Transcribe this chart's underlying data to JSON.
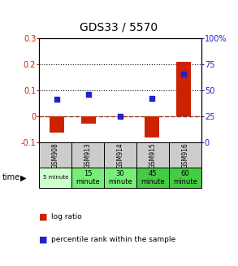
{
  "title": "GDS33 / 5570",
  "samples": [
    "GSM908",
    "GSM913",
    "GSM914",
    "GSM915",
    "GSM916"
  ],
  "time_labels": [
    "5 minute",
    "15\nminute",
    "30\nminute",
    "45\nminute",
    "60\nminute"
  ],
  "log_ratio": [
    -0.062,
    -0.028,
    0.0,
    -0.082,
    0.21
  ],
  "percentile_rank": [
    0.065,
    0.085,
    0.0,
    0.07,
    0.165
  ],
  "ylim_left": [
    -0.1,
    0.3
  ],
  "ylim_right": [
    0,
    100
  ],
  "bar_color": "#cc2200",
  "dot_color": "#2222cc",
  "bg_color": "#ffffff",
  "zero_line_color": "#cc2200",
  "dotted_line_color": "#111111",
  "table_gray": "#cccccc",
  "table_light_green": "#ccffcc",
  "table_med_green": "#77ee77",
  "table_dark_green": "#33cc33",
  "tick_fontsize": 7,
  "bar_width": 0.45,
  "time_colors": [
    "#ccffcc",
    "#77ee77",
    "#77ee77",
    "#44cc44",
    "#44cc44"
  ]
}
